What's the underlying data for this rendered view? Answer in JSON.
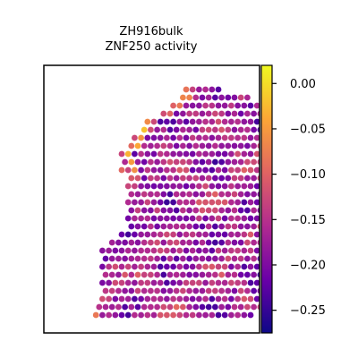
{
  "chart_data": {
    "type": "heatmap",
    "title": "ZH916bulk",
    "subtitle": "ZNF250 activity",
    "xlabel": "",
    "ylabel": "",
    "grid": false,
    "colormap": "plasma",
    "colorbar": {
      "vmin": -0.275,
      "vmax": 0.02,
      "ticks": [
        0.0,
        -0.05,
        -0.1,
        -0.15,
        -0.2,
        -0.25
      ],
      "tick_labels": [
        "0.00",
        "−0.05",
        "−0.10",
        "−0.15",
        "−0.20",
        "−0.25"
      ]
    },
    "tissue_mask_rows": [
      [
        2,
        15,
        20
      ],
      [
        3,
        14,
        24
      ],
      [
        4,
        13,
        26
      ],
      [
        5,
        11,
        28
      ],
      [
        6,
        9,
        28
      ],
      [
        7,
        8,
        29
      ],
      [
        8,
        7,
        29
      ],
      [
        9,
        6,
        30
      ],
      [
        10,
        5,
        30
      ],
      [
        11,
        5,
        30
      ],
      [
        12,
        5,
        29
      ],
      [
        13,
        6,
        29
      ],
      [
        14,
        6,
        28
      ],
      [
        15,
        6,
        28
      ],
      [
        16,
        6,
        28
      ],
      [
        17,
        6,
        28
      ],
      [
        18,
        6,
        28
      ],
      [
        19,
        6,
        27
      ],
      [
        20,
        5,
        27
      ],
      [
        21,
        3,
        27
      ],
      [
        22,
        2,
        27
      ],
      [
        23,
        2,
        27
      ],
      [
        24,
        2,
        27
      ],
      [
        25,
        2,
        27
      ],
      [
        26,
        2,
        26
      ],
      [
        27,
        2,
        26
      ],
      [
        28,
        2,
        26
      ],
      [
        29,
        1,
        26
      ],
      [
        30,
        1,
        25
      ]
    ],
    "hotspots": [
      {
        "row": 1,
        "col": 16,
        "value": 0.02
      },
      {
        "row": 1,
        "col": 17,
        "value": 0.0
      },
      {
        "row": 7,
        "col": 8,
        "value": -0.02
      },
      {
        "row": 9,
        "col": 7,
        "value": -0.04
      },
      {
        "row": 10,
        "col": 6,
        "value": -0.03
      },
      {
        "row": 11,
        "col": 6,
        "value": -0.05
      },
      {
        "row": 12,
        "col": 7,
        "value": -0.06
      },
      {
        "row": 30,
        "col": 1,
        "value": -0.08
      }
    ],
    "value_range_note": "spot values range from about -0.27 to 0.02"
  }
}
